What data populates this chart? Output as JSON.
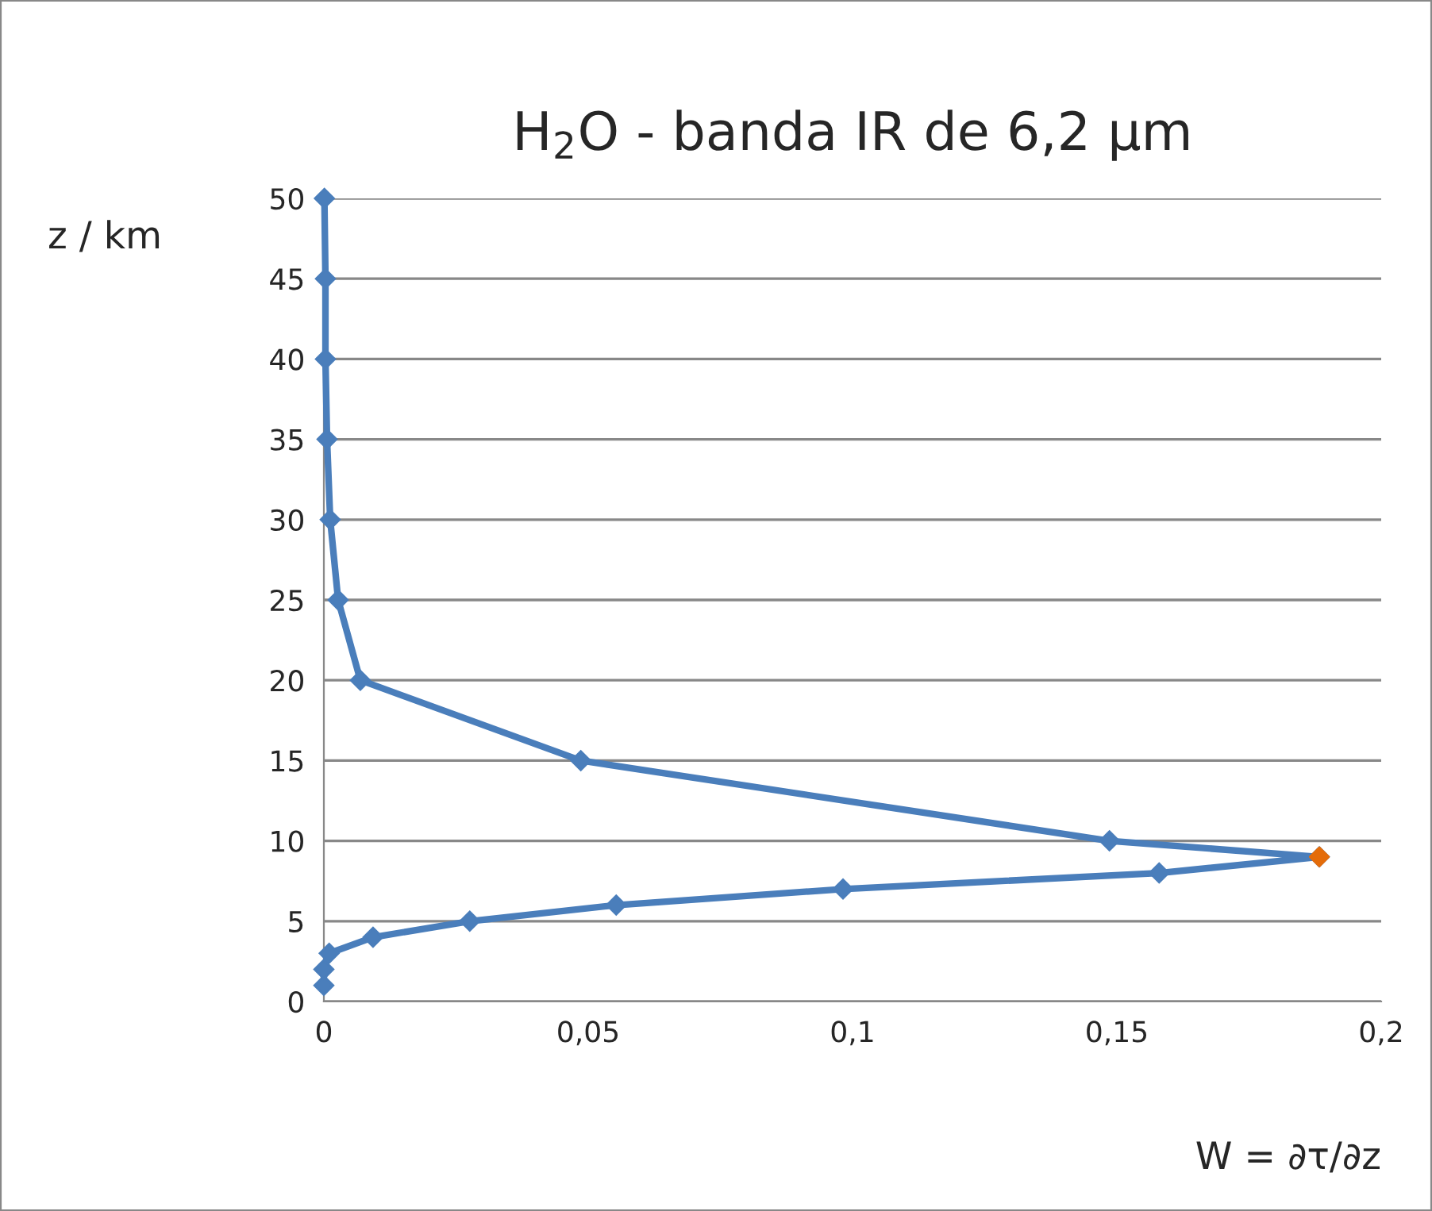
{
  "chart_data": {
    "type": "line",
    "title": "H$_{2}$O - banda IR de 6,2 µm",
    "xlabel": "W = ∂τ/∂z",
    "ylabel": "z / km",
    "series": [
      {
        "color": "#4a7ebb",
        "x": [
          0,
          0,
          0.001,
          0.0093,
          0.0276,
          0.0553,
          0.0982,
          0.158,
          0.1883,
          0.1486,
          0.0486,
          0.0069,
          0.0027,
          0.0012,
          0.0006,
          0.0003,
          0.0003,
          0.0001
        ],
        "values": [
          1,
          2,
          3,
          4,
          5,
          6,
          7,
          8,
          9,
          10,
          15,
          20,
          25,
          30,
          35,
          40,
          45,
          50
        ],
        "marker": "diamond",
        "line_style": "solid"
      },
      {
        "type": "scatter",
        "color": "#e46c0a",
        "x": [
          0.1883
        ],
        "values": [
          9
        ],
        "marker": "diamond"
      }
    ],
    "xlim": [
      0,
      0.2
    ],
    "xticks": [
      0,
      {
        "value": 0.05,
        "label": "0,05"
      },
      {
        "value": 0.1,
        "label": "0,1"
      },
      {
        "value": 0.15,
        "label": "0,15"
      },
      {
        "value": 0.2,
        "label": "0,2"
      }
    ],
    "ylim": [
      0,
      50
    ],
    "yticks": [
      0,
      5,
      10,
      15,
      20,
      25,
      30,
      35,
      40,
      45,
      50
    ],
    "grid": "y",
    "legend": false
  }
}
